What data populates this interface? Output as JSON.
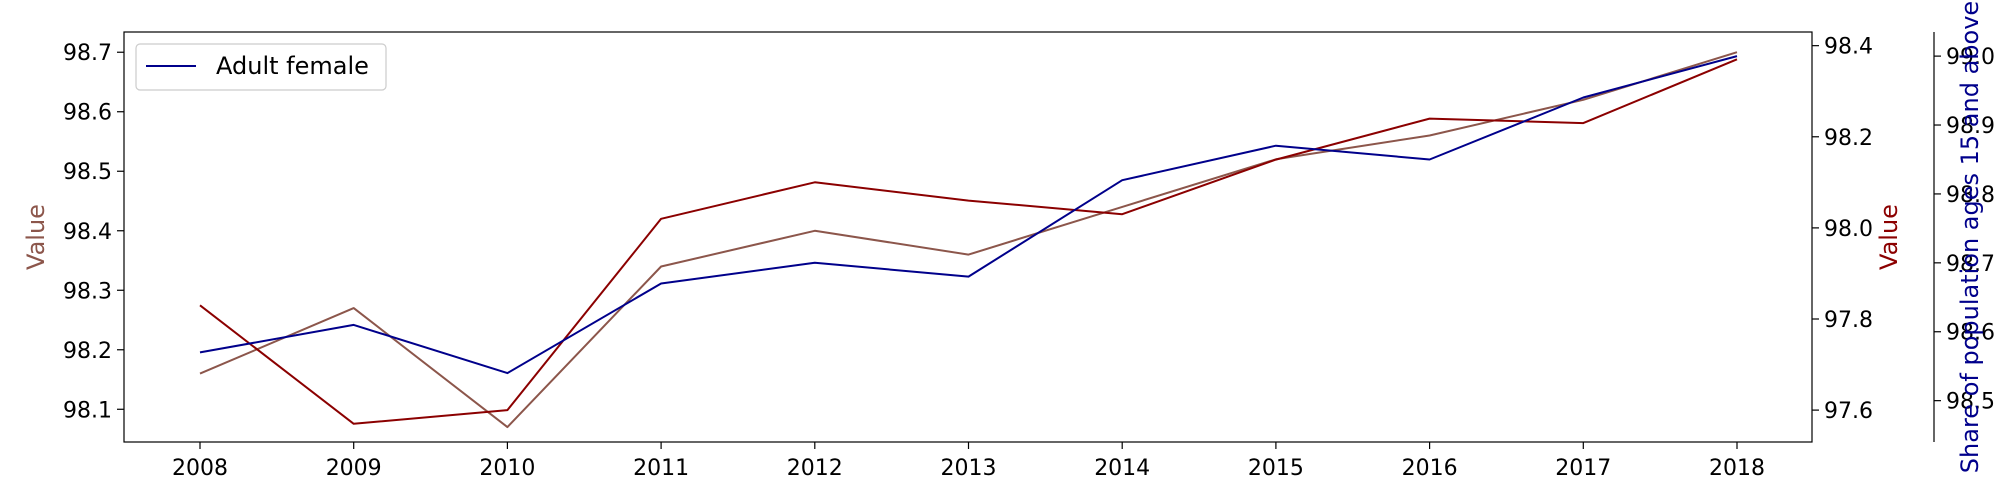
{
  "chart_data": {
    "type": "line",
    "x": [
      "2008",
      "2009",
      "2010",
      "2011",
      "2012",
      "2013",
      "2014",
      "2015",
      "2016",
      "2017",
      "2018"
    ],
    "axes": {
      "left": {
        "label": "Value",
        "color": "#8c564b",
        "ylim": [
          98.045,
          98.734
        ],
        "ticks": [
          "98.1",
          "98.2",
          "98.3",
          "98.4",
          "98.5",
          "98.6",
          "98.7"
        ]
      },
      "right1": {
        "label": "Value",
        "color": "#8b0000",
        "ylim": [
          97.53,
          98.43
        ],
        "ticks": [
          "97.6",
          "97.8",
          "98.0",
          "98.2",
          "98.4"
        ]
      },
      "right2": {
        "label": "Share of population ages 15 and above",
        "color": "#00008b",
        "ylim": [
          98.44,
          99.035
        ],
        "ticks": [
          "98.5",
          "98.6",
          "98.7",
          "98.8",
          "98.9",
          "99.0"
        ]
      }
    },
    "series": [
      {
        "axis": "left",
        "color": "#8c564b",
        "values": [
          98.16,
          98.27,
          98.07,
          98.34,
          98.4,
          98.36,
          98.44,
          98.52,
          98.56,
          98.62,
          98.7
        ]
      },
      {
        "axis": "right1",
        "color": "#8b0000",
        "values": [
          97.83,
          97.57,
          97.6,
          98.02,
          98.1,
          98.06,
          98.03,
          98.15,
          98.24,
          98.23,
          98.37
        ]
      },
      {
        "name": "Adult female",
        "axis": "right2",
        "color": "#00008b",
        "values": [
          98.57,
          98.61,
          98.54,
          98.67,
          98.7,
          98.68,
          98.82,
          98.87,
          98.85,
          98.94,
          99.0
        ]
      }
    ],
    "legend": {
      "position": "top-left",
      "entries": [
        "Adult female"
      ]
    },
    "grid": false
  }
}
